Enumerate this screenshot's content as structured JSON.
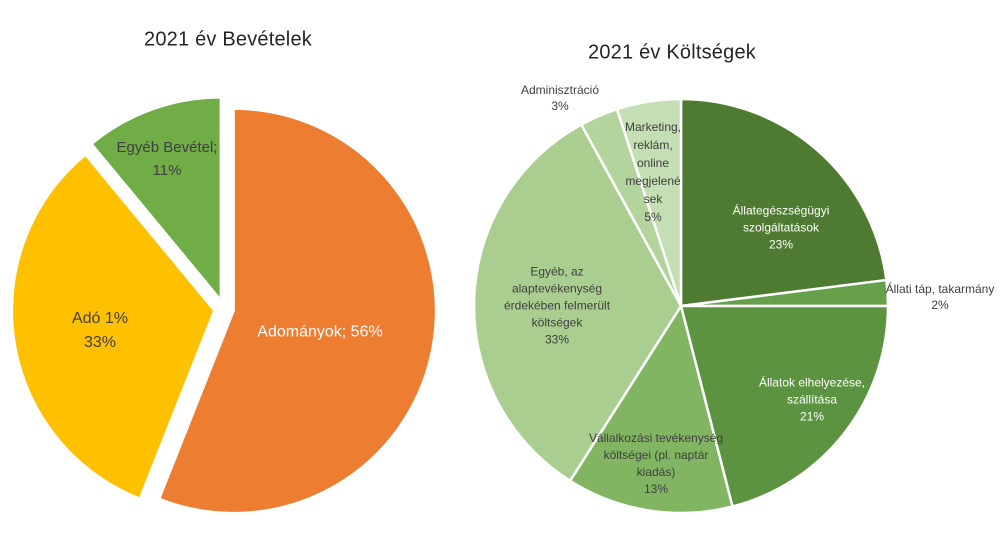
{
  "page": {
    "background": "#FFFFFF",
    "label_text_dark": "#404040",
    "label_text_light": "#FFFFFF",
    "title_color": "#262626"
  },
  "chart_data": [
    {
      "type": "pie",
      "title": "2021 év Bevételek",
      "unit": "%",
      "direction": "clockwise",
      "start_angle_deg": 0,
      "exploded": true,
      "legend": "none",
      "slices": [
        {
          "label": "Adományok",
          "value": 56,
          "color": "#ED7D31",
          "label_lines": [
            "Adományok; 56%"
          ],
          "label_text_color": "#FFFFFF",
          "label_placement": "inside"
        },
        {
          "label": "Adó 1%",
          "value": 33,
          "color": "#FFC000",
          "label_lines": [
            "Adó 1%",
            "33%"
          ],
          "label_text_color": "#404040",
          "label_placement": "inside"
        },
        {
          "label": "Egyéb Bevétel",
          "value": 11,
          "color": "#70AD47",
          "label_lines": [
            "Egyéb Bevétel;",
            "11%"
          ],
          "label_text_color": "#404040",
          "label_placement": "inside"
        }
      ]
    },
    {
      "type": "pie",
      "title": "2021 év Költségek",
      "unit": "%",
      "direction": "clockwise",
      "start_angle_deg": 0,
      "exploded": false,
      "legend": "none",
      "slices": [
        {
          "label": "Állategészségügyi szolgáltatások",
          "value": 23,
          "color": "#4E7B31",
          "label_lines": [
            "Állategészségügyi",
            "szolgáltatások",
            "23%"
          ],
          "label_text_color": "#FFFFFF",
          "label_placement": "inside"
        },
        {
          "label": "Állati táp, takarmány",
          "value": 2,
          "color": "#67A04A",
          "label_lines": [
            "Állati táp, takarmány",
            "2%"
          ],
          "label_text_color": "#404040",
          "label_placement": "outside"
        },
        {
          "label": "Állatok elhelyezése, szállítása",
          "value": 21,
          "color": "#5C9340",
          "label_lines": [
            "Állatok elhelyezése,",
            "szállítása",
            "21%"
          ],
          "label_text_color": "#FFFFFF",
          "label_placement": "inside"
        },
        {
          "label": "Vállalkozási tevékenység költségei (pl. naptár kiadás)",
          "value": 13,
          "color": "#81B561",
          "label_lines": [
            "Vállalkozási tevékenység",
            "költségei (pl. naptár",
            "kiadás)",
            "13%"
          ],
          "label_text_color": "#404040",
          "label_placement": "inside"
        },
        {
          "label": "Egyéb, az alaptevékenység érdekében felmerült költségek",
          "value": 33,
          "color": "#A9CE90",
          "label_lines": [
            "Egyéb, az",
            "alaptevékenység",
            "érdekében felmerült",
            "költségek",
            "33%"
          ],
          "label_text_color": "#404040",
          "label_placement": "inside"
        },
        {
          "label": "Adminisztráció",
          "value": 3,
          "color": "#B3D49C",
          "label_lines": [
            "Adminisztráció",
            "3%"
          ],
          "label_text_color": "#404040",
          "label_placement": "outside"
        },
        {
          "label": "Marketing, reklám, online megjelenések",
          "value": 5,
          "color": "#C5DFB4",
          "label_lines": [
            "Marketing,",
            "reklám,",
            "online",
            "megjelené",
            "sek",
            "5%"
          ],
          "label_text_color": "#404040",
          "label_placement": "inside"
        }
      ]
    }
  ]
}
